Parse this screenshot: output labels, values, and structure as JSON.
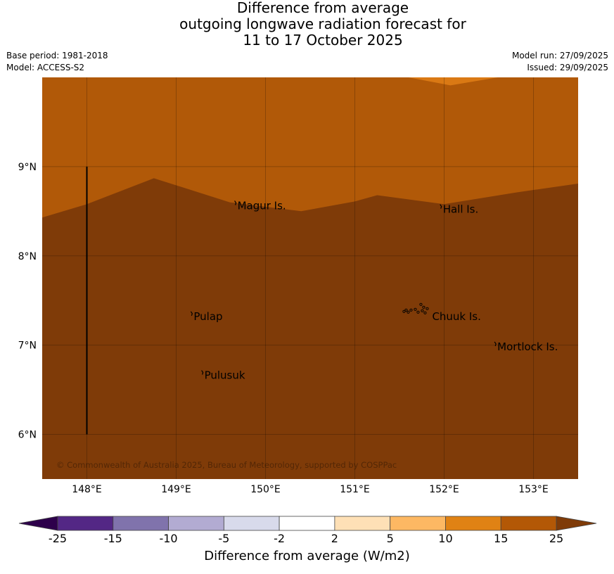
{
  "title": {
    "line1": "Difference from average",
    "line2": "outgoing longwave radiation forecast for",
    "line3": "11 to 17 October 2025"
  },
  "meta": {
    "base_period": "Base period: 1981-2018",
    "model": "Model: ACCESS-S2",
    "model_run": "Model run: 27/09/2025",
    "issued": "Issued: 29/09/2025"
  },
  "map": {
    "lon_range": [
      147.5,
      153.5
    ],
    "lat_range": [
      5.5,
      10.0
    ],
    "lon_ticks": [
      {
        "value": 148,
        "label": "148°E"
      },
      {
        "value": 149,
        "label": "149°E"
      },
      {
        "value": 150,
        "label": "150°E"
      },
      {
        "value": 151,
        "label": "151°E"
      },
      {
        "value": 152,
        "label": "152°E"
      },
      {
        "value": 153,
        "label": "153°E"
      }
    ],
    "lat_ticks": [
      {
        "value": 9,
        "label": "9°N"
      },
      {
        "value": 8,
        "label": "8°N"
      },
      {
        "value": 7,
        "label": "7°N"
      },
      {
        "value": 6,
        "label": "6°N"
      }
    ],
    "places": [
      {
        "name": "Magur Is.",
        "lon": 149.67,
        "lat": 8.57
      },
      {
        "name": "Hall Is.",
        "lon": 151.97,
        "lat": 8.53
      },
      {
        "name": "Pulap",
        "lon": 149.18,
        "lat": 7.33
      },
      {
        "name": "Chuuk Is.",
        "lon": 151.85,
        "lat": 7.33
      },
      {
        "name": "Mortlock Is.",
        "lon": 152.58,
        "lat": 6.99
      },
      {
        "name": "Pulusuk",
        "lon": 149.3,
        "lat": 6.67
      }
    ],
    "boundary_line": {
      "lon": 148.0,
      "lat_from": 6.0,
      "lat_to": 9.0
    },
    "regions": [
      {
        "band": "10 to 15",
        "color": "#da7914"
      },
      {
        "band": "15 to 25",
        "color": "#b15908"
      },
      {
        "band": "above 25",
        "color": "#7f3b08"
      }
    ],
    "contour_15_25": [
      [
        147.5,
        8.43
      ],
      [
        148.0,
        8.58
      ],
      [
        148.75,
        8.87
      ],
      [
        149.6,
        8.6
      ],
      [
        150.4,
        8.5
      ],
      [
        151.0,
        8.61
      ],
      [
        151.25,
        8.68
      ],
      [
        152.0,
        8.58
      ],
      [
        152.8,
        8.71
      ],
      [
        153.5,
        8.81
      ]
    ],
    "contour_10_15": [
      [
        151.6,
        10.0
      ],
      [
        152.07,
        9.91
      ],
      [
        152.6,
        10.0
      ]
    ],
    "copyright": "© Commonwealth of Australia 2025, Bureau of Meteorology, supported by COSPPac"
  },
  "colorbar": {
    "title": "Difference from average (W/m2)",
    "ticks": [
      "-25",
      "-15",
      "-10",
      "-5",
      "-2",
      "2",
      "5",
      "10",
      "15",
      "25"
    ],
    "colors": [
      "#532785",
      "#8073ac",
      "#b2abd2",
      "#d8daeb",
      "#ffffff",
      "#fee0b6",
      "#fdb863",
      "#e08214",
      "#b35806"
    ],
    "under_color": "#2d004b",
    "over_color": "#7f3b08"
  }
}
